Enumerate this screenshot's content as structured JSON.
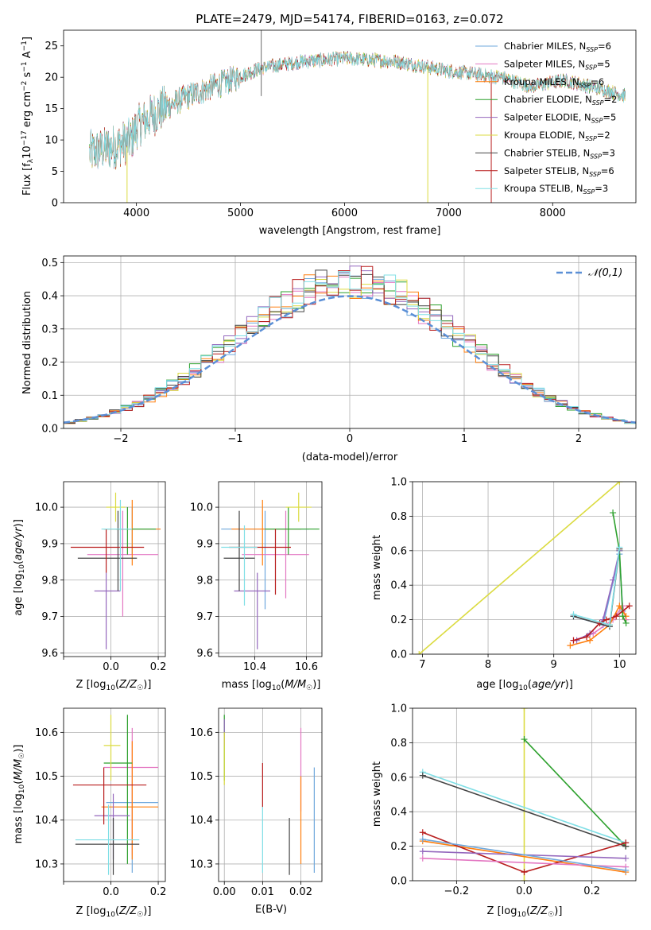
{
  "chart_data": [
    {
      "id": "spectrum",
      "type": "line",
      "title": "PLATE=2479, MJD=54174, FIBERID=0163, z=0.072",
      "xlabel": "wavelength [Angstrom, rest frame]",
      "ylabel": "Flux [f_λ 10⁻¹⁷ erg cm⁻² s⁻¹ A⁻¹]",
      "xlim": [
        3300,
        8800
      ],
      "ylim": [
        0,
        27.5
      ],
      "xticks": [
        4000,
        5000,
        6000,
        7000,
        8000
      ],
      "yticks": [
        0,
        5,
        10,
        15,
        20,
        25
      ],
      "grid": false,
      "legend_position": "top-right",
      "continuum": {
        "x": [
          3550,
          3800,
          3950,
          4000,
          4200,
          4500,
          4900,
          5200,
          5600,
          6000,
          6500,
          7000,
          7500,
          7800,
          8100,
          8500,
          8700
        ],
        "y": [
          8,
          9,
          10,
          12,
          14.5,
          17,
          19.5,
          21.5,
          22.5,
          23,
          22.5,
          21,
          20,
          18.5,
          19.5,
          18,
          17
        ]
      },
      "series": [
        {
          "name": "Chabrier MILES, N_SSP=6",
          "color": "#6fa8dc"
        },
        {
          "name": "Salpeter MILES, N_SSP=5",
          "color": "#e377c2"
        },
        {
          "name": "Kroupa MILES, N_SSP=6",
          "color": "#ff7f0e"
        },
        {
          "name": "Chabrier ELODIE, N_SSP=2",
          "color": "#2ca02c"
        },
        {
          "name": "Salpeter ELODIE, N_SSP=5",
          "color": "#9467bd"
        },
        {
          "name": "Kroupa ELODIE, N_SSP=2",
          "color": "#dbdb40"
        },
        {
          "name": "Chabrier STELIB, N_SSP=3",
          "color": "#444444"
        },
        {
          "name": "Salpeter STELIB, N_SSP=6",
          "color": "#b81c1c"
        },
        {
          "name": "Kroupa STELIB, N_SSP=3",
          "color": "#80dfe6"
        }
      ]
    },
    {
      "id": "residuals",
      "type": "histogram",
      "xlabel": "(data-model)/error",
      "ylabel": "Normed distribution",
      "xlim": [
        -2.5,
        2.5
      ],
      "ylim": [
        0,
        0.52
      ],
      "xticks": [
        -2,
        -1,
        0,
        1,
        2
      ],
      "yticks": [
        0.0,
        0.1,
        0.2,
        0.3,
        0.4,
        0.5
      ],
      "grid": true,
      "legend_position": "top-right",
      "legend": "𝒩(0,1)",
      "bin_width": 0.1,
      "colors": [
        "#6fa8dc",
        "#e377c2",
        "#ff7f0e",
        "#2ca02c",
        "#9467bd",
        "#dbdb40",
        "#444444",
        "#b81c1c",
        "#80dfe6"
      ]
    },
    {
      "id": "age_vs_Z",
      "type": "errorbar",
      "xlabel": "Z [log10(Z/Z⊙)]",
      "ylabel": "age  [log10(age/yr)]",
      "xlim": [
        -0.2,
        0.23
      ],
      "ylim": [
        9.59,
        10.07
      ],
      "xticks": [
        -0.2,
        0.0,
        0.2
      ],
      "xticklabels": [
        "",
        "0.0",
        "0.2"
      ],
      "yticks": [
        9.6,
        9.7,
        9.8,
        9.9,
        10.0
      ],
      "grid": true,
      "points": [
        {
          "x": 0.09,
          "y": 9.94,
          "xerr": [
            0.12,
            0.12
          ],
          "yerr": [
            0.07,
            0.06
          ],
          "color": "#6fa8dc"
        },
        {
          "x": 0.05,
          "y": 9.87,
          "xerr": [
            0.15,
            0.15
          ],
          "yerr": [
            0.17,
            0.12
          ],
          "color": "#e377c2"
        },
        {
          "x": 0.09,
          "y": 9.94,
          "xerr": [
            0.12,
            0.12
          ],
          "yerr": [
            0.1,
            0.08
          ],
          "color": "#ff7f0e"
        },
        {
          "x": 0.07,
          "y": 9.94,
          "xerr": [
            0.05,
            0.12
          ],
          "yerr": [
            0.07,
            0.06
          ],
          "color": "#2ca02c"
        },
        {
          "x": -0.02,
          "y": 9.77,
          "xerr": [
            0.05,
            0.06
          ],
          "yerr": [
            0.16,
            0.05
          ],
          "color": "#9467bd"
        },
        {
          "x": 0.02,
          "y": 10.0,
          "xerr": [
            0.04,
            0.04
          ],
          "yerr": [
            0.04,
            0.04
          ],
          "color": "#dbdb40"
        },
        {
          "x": 0.03,
          "y": 9.86,
          "xerr": [
            0.17,
            0.08
          ],
          "yerr": [
            0.09,
            0.13
          ],
          "color": "#444444"
        },
        {
          "x": -0.02,
          "y": 9.89,
          "xerr": [
            0.15,
            0.16
          ],
          "yerr": [
            0.07,
            0.05
          ],
          "color": "#b81c1c"
        },
        {
          "x": 0.04,
          "y": 9.94,
          "xerr": [
            0.08,
            0.05
          ],
          "yerr": [
            0.17,
            0.08
          ],
          "color": "#80dfe6"
        }
      ]
    },
    {
      "id": "age_vs_mass",
      "type": "errorbar",
      "xlabel": "mass [log10(M/M⊙)]",
      "ylabel": "",
      "xlim": [
        10.26,
        10.66
      ],
      "ylim": [
        9.59,
        10.07
      ],
      "xticks": [
        10.4,
        10.6
      ],
      "yticks": [
        9.6,
        9.7,
        9.8,
        9.9,
        10.0
      ],
      "grid": true,
      "points": [
        {
          "x": 10.44,
          "y": 9.94,
          "xerr": [
            0.17,
            0.17
          ],
          "yerr": [
            0.22,
            0.05
          ],
          "color": "#6fa8dc"
        },
        {
          "x": 10.52,
          "y": 9.87,
          "xerr": [
            0.17,
            0.09
          ],
          "yerr": [
            0.12,
            0.12
          ],
          "color": "#e377c2"
        },
        {
          "x": 10.43,
          "y": 9.94,
          "xerr": [
            0.12,
            0.15
          ],
          "yerr": [
            0.1,
            0.08
          ],
          "color": "#ff7f0e"
        },
        {
          "x": 10.53,
          "y": 9.94,
          "xerr": [
            0.09,
            0.12
          ],
          "yerr": [
            0.07,
            0.06
          ],
          "color": "#2ca02c"
        },
        {
          "x": 10.41,
          "y": 9.77,
          "xerr": [
            0.09,
            0.05
          ],
          "yerr": [
            0.16,
            0.05
          ],
          "color": "#9467bd"
        },
        {
          "x": 10.57,
          "y": 10.0,
          "xerr": [
            0.05,
            0.05
          ],
          "yerr": [
            0.04,
            0.04
          ],
          "color": "#dbdb40"
        },
        {
          "x": 10.34,
          "y": 9.86,
          "xerr": [
            0.06,
            0.06
          ],
          "yerr": [
            0.09,
            0.13
          ],
          "color": "#444444"
        },
        {
          "x": 10.48,
          "y": 9.89,
          "xerr": [
            0.18,
            0.06
          ],
          "yerr": [
            0.13,
            0.05
          ],
          "color": "#b81c1c"
        },
        {
          "x": 10.36,
          "y": 9.89,
          "xerr": [
            0.09,
            0.05
          ],
          "yerr": [
            0.16,
            0.06
          ],
          "color": "#80dfe6"
        }
      ]
    },
    {
      "id": "weight_vs_age",
      "type": "line",
      "xlabel": "age  [log10(age/yr)]",
      "ylabel": "mass weight",
      "xlim": [
        6.85,
        10.25
      ],
      "ylim": [
        0,
        1.0
      ],
      "xticks": [
        7,
        8,
        9,
        10
      ],
      "yticks": [
        0.0,
        0.2,
        0.4,
        0.6,
        0.8,
        1.0
      ],
      "grid": true,
      "series": [
        {
          "color": "#dbdb40",
          "x": [
            6.95,
            10.0
          ],
          "y": [
            0.0,
            1.0
          ]
        },
        {
          "color": "#6fa8dc",
          "x": [
            9.3,
            9.75,
            10.0,
            10.05
          ],
          "y": [
            0.22,
            0.17,
            0.58,
            0.25
          ]
        },
        {
          "color": "#e377c2",
          "x": [
            9.3,
            9.6,
            9.9,
            10.05,
            10.1
          ],
          "y": [
            0.08,
            0.12,
            0.2,
            0.28,
            0.2
          ]
        },
        {
          "color": "#ff7f0e",
          "x": [
            9.25,
            9.55,
            9.85,
            10.0,
            10.1
          ],
          "y": [
            0.05,
            0.08,
            0.17,
            0.28,
            0.22
          ]
        },
        {
          "color": "#2ca02c",
          "x": [
            9.9,
            10.0,
            10.05,
            10.1
          ],
          "y": [
            0.82,
            0.6,
            0.22,
            0.18
          ]
        },
        {
          "color": "#9467bd",
          "x": [
            9.35,
            9.55,
            9.75,
            9.9,
            10.0
          ],
          "y": [
            0.08,
            0.12,
            0.2,
            0.43,
            0.6
          ]
        },
        {
          "color": "#444444",
          "x": [
            9.3,
            9.85,
            10.0
          ],
          "y": [
            0.22,
            0.16,
            0.61
          ]
        },
        {
          "color": "#b81c1c",
          "x": [
            9.3,
            9.5,
            9.7,
            9.8,
            9.95,
            10.15
          ],
          "y": [
            0.08,
            0.1,
            0.18,
            0.2,
            0.22,
            0.28
          ]
        },
        {
          "color": "#80dfe6",
          "x": [
            9.3,
            9.85,
            10.0
          ],
          "y": [
            0.23,
            0.17,
            0.62
          ]
        }
      ]
    },
    {
      "id": "mass_vs_Z",
      "type": "errorbar",
      "xlabel": "Z [log10(Z/Z⊙)]",
      "ylabel": "mass [log10(M/M⊙)]",
      "xlim": [
        -0.2,
        0.23
      ],
      "ylim": [
        10.26,
        10.655
      ],
      "xticks": [
        -0.2,
        0.0,
        0.2
      ],
      "xticklabels": [
        "",
        "0.0",
        "0.2"
      ],
      "yticks": [
        10.3,
        10.4,
        10.5,
        10.6
      ],
      "grid": true,
      "points": [
        {
          "x": 0.09,
          "y": 10.44,
          "xerr": [
            0.11,
            0.11
          ],
          "yerr": [
            0.16,
            0.05
          ],
          "color": "#6fa8dc"
        },
        {
          "x": 0.09,
          "y": 10.52,
          "xerr": [
            0.12,
            0.11
          ],
          "yerr": [
            0.2,
            0.09
          ],
          "color": "#e377c2"
        },
        {
          "x": 0.09,
          "y": 10.43,
          "xerr": [
            0.13,
            0.11
          ],
          "yerr": [
            0.12,
            0.15
          ],
          "color": "#ff7f0e"
        },
        {
          "x": 0.07,
          "y": 10.53,
          "xerr": [
            0.1,
            0.02
          ],
          "yerr": [
            0.23,
            0.11
          ],
          "color": "#2ca02c"
        },
        {
          "x": 0.01,
          "y": 10.41,
          "xerr": [
            0.08,
            0.07
          ],
          "yerr": [
            0.1,
            0.05
          ],
          "color": "#9467bd"
        },
        {
          "x": 0.0,
          "y": 10.57,
          "xerr": [
            0.03,
            0.04
          ],
          "yerr": [
            0.08,
            0.07
          ],
          "color": "#dbdb40"
        },
        {
          "x": 0.01,
          "y": 10.345,
          "xerr": [
            0.16,
            0.11
          ],
          "yerr": [
            0.07,
            0.06
          ],
          "color": "#444444"
        },
        {
          "x": -0.03,
          "y": 10.48,
          "xerr": [
            0.13,
            0.18
          ],
          "yerr": [
            0.09,
            0.04
          ],
          "color": "#b81c1c"
        },
        {
          "x": -0.01,
          "y": 10.355,
          "xerr": [
            0.14,
            0.13
          ],
          "yerr": [
            0.08,
            0.08
          ],
          "color": "#80dfe6"
        }
      ]
    },
    {
      "id": "mass_vs_ebv",
      "type": "errorbar",
      "xlabel": "E(B-V)",
      "ylabel": "",
      "xlim": [
        -0.0015,
        0.0255
      ],
      "ylim": [
        10.26,
        10.655
      ],
      "xticks": [
        0.0,
        0.01,
        0.02
      ],
      "xticklabels": [
        "0.00",
        "0.01",
        "0.02"
      ],
      "yticks": [
        10.3,
        10.4,
        10.5,
        10.6
      ],
      "grid": true,
      "points": [
        {
          "x": 0.0235,
          "y": 10.44,
          "xerr": [
            0,
            0
          ],
          "yerr": [
            0.16,
            0.08
          ],
          "color": "#6fa8dc"
        },
        {
          "x": 0.02,
          "y": 10.52,
          "xerr": [
            0,
            0
          ],
          "yerr": [
            0.1,
            0.09
          ],
          "color": "#e377c2"
        },
        {
          "x": 0.02,
          "y": 10.43,
          "xerr": [
            0,
            0
          ],
          "yerr": [
            0.13,
            0.07
          ],
          "color": "#ff7f0e"
        },
        {
          "x": 0.0,
          "y": 10.57,
          "xerr": [
            0,
            0
          ],
          "yerr": [
            0.08,
            0.07
          ],
          "color": "#2ca02c"
        },
        {
          "x": 0.0,
          "y": 10.6,
          "xerr": [
            0,
            0
          ],
          "yerr": [
            0.03,
            0.03
          ],
          "color": "#9467bd"
        },
        {
          "x": 0.0,
          "y": 10.55,
          "xerr": [
            0,
            0
          ],
          "yerr": [
            0.07,
            0.05
          ],
          "color": "#dbdb40"
        },
        {
          "x": 0.017,
          "y": 10.345,
          "xerr": [
            0,
            0
          ],
          "yerr": [
            0.07,
            0.06
          ],
          "color": "#444444"
        },
        {
          "x": 0.01,
          "y": 10.48,
          "xerr": [
            0,
            0
          ],
          "yerr": [
            0.05,
            0.05
          ],
          "color": "#b81c1c"
        },
        {
          "x": 0.01,
          "y": 10.36,
          "xerr": [
            0,
            0
          ],
          "yerr": [
            0.08,
            0.07
          ],
          "color": "#80dfe6"
        }
      ]
    },
    {
      "id": "weight_vs_Z",
      "type": "line",
      "xlabel": "Z [log10(Z/Z⊙)]",
      "ylabel": "mass weight",
      "xlim": [
        -0.33,
        0.33
      ],
      "ylim": [
        0,
        1.0
      ],
      "xticks": [
        -0.2,
        0.0,
        0.2
      ],
      "xticklabels": [
        "−0.2",
        "0.0",
        "0.2"
      ],
      "yticks": [
        0.0,
        0.2,
        0.4,
        0.6,
        0.8,
        1.0
      ],
      "grid": true,
      "series": [
        {
          "color": "#dbdb40",
          "x": [
            0.0,
            0.0
          ],
          "y": [
            0.0,
            1.0
          ]
        },
        {
          "color": "#2ca02c",
          "x": [
            0.0,
            0.3
          ],
          "y": [
            0.82,
            0.2
          ]
        },
        {
          "color": "#80dfe6",
          "x": [
            -0.3,
            0.3
          ],
          "y": [
            0.63,
            0.22
          ]
        },
        {
          "color": "#444444",
          "x": [
            -0.3,
            0.3
          ],
          "y": [
            0.61,
            0.2
          ]
        },
        {
          "color": "#ff7f0e",
          "x": [
            -0.3,
            0.3
          ],
          "y": [
            0.23,
            0.05
          ]
        },
        {
          "color": "#b81c1c",
          "x": [
            -0.3,
            0.0,
            0.3
          ],
          "y": [
            0.28,
            0.05,
            0.22
          ]
        },
        {
          "color": "#9467bd",
          "x": [
            -0.3,
            0.3
          ],
          "y": [
            0.17,
            0.13
          ]
        },
        {
          "color": "#e377c2",
          "x": [
            -0.3,
            0.3
          ],
          "y": [
            0.13,
            0.08
          ]
        },
        {
          "color": "#6fa8dc",
          "x": [
            -0.3,
            0.3
          ],
          "y": [
            0.24,
            0.06
          ]
        }
      ]
    }
  ]
}
